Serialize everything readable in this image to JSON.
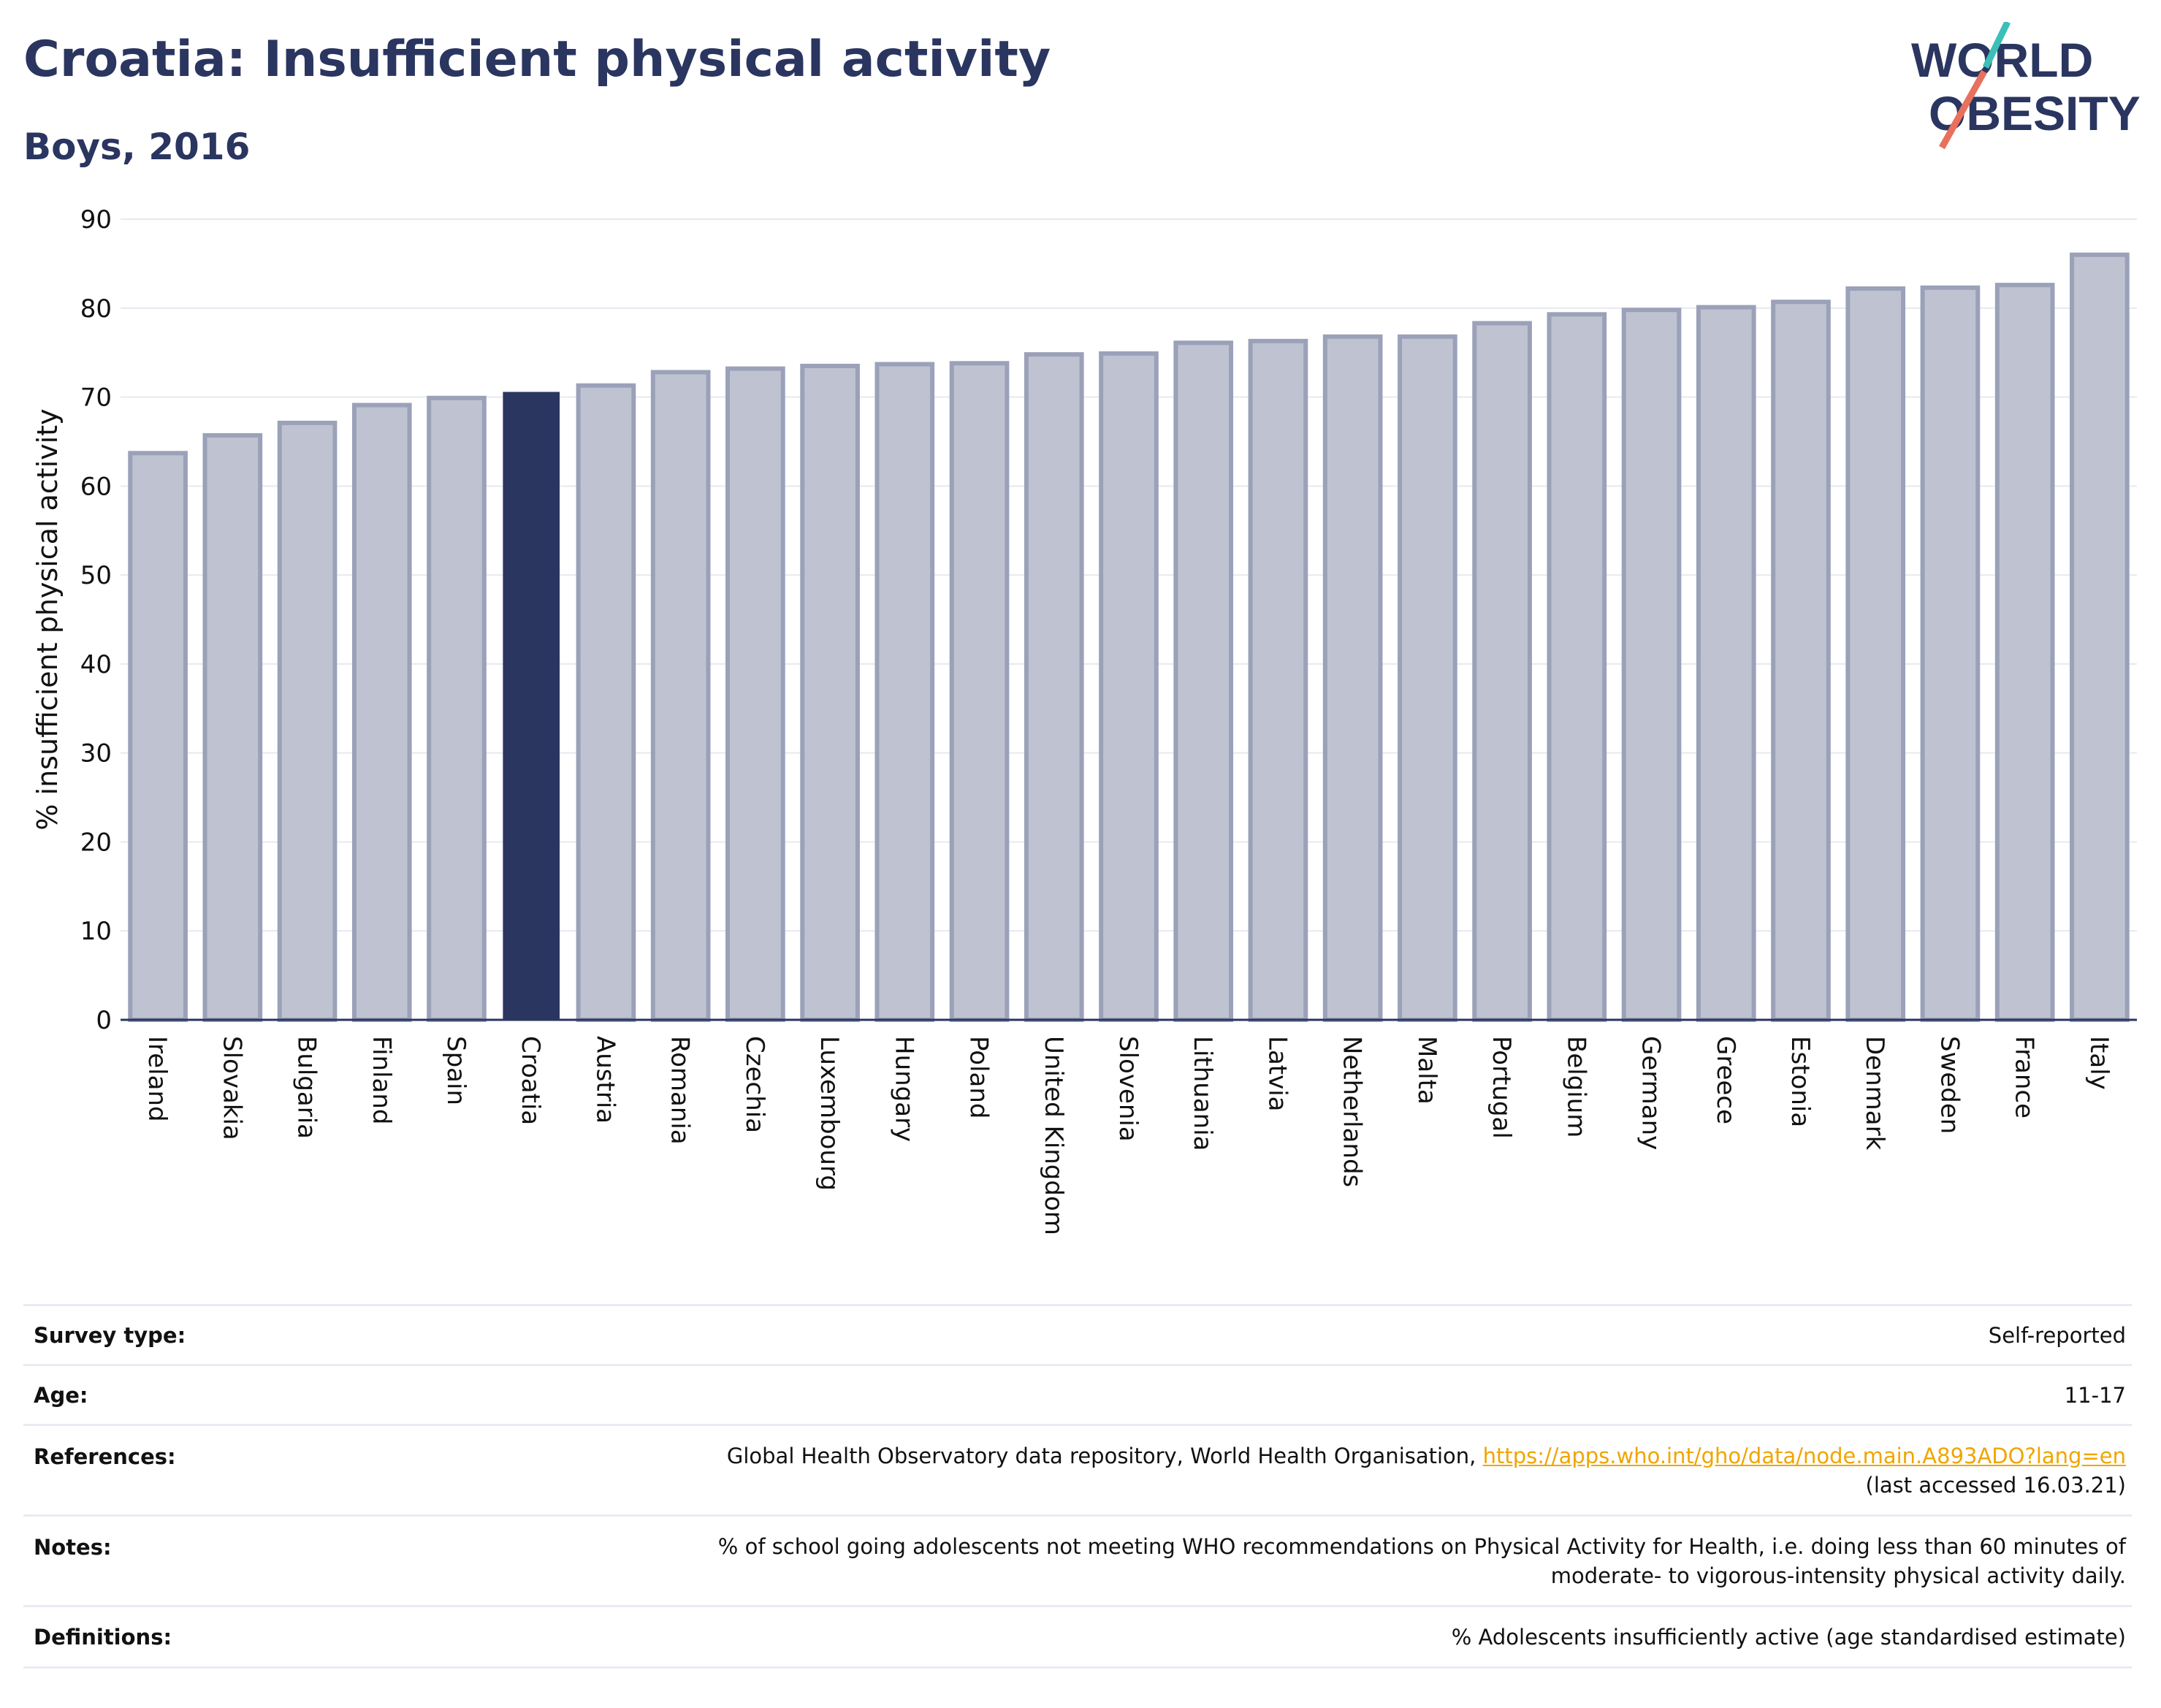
{
  "header": {
    "title": "Croatia: Insufficient physical activity",
    "subtitle": "Boys, 2016"
  },
  "logo": {
    "line1": "WORLD",
    "line2": "OBESITY",
    "accent_teal": "#3bbfb8",
    "accent_coral": "#e8705c",
    "text_color": "#2a3560"
  },
  "colors": {
    "highlight_bar": "#2a3560",
    "other_bar_fill": "#bfc3d1",
    "other_bar_border": "#9aa1b8",
    "gridline": "#e6e9f0"
  },
  "chart_data": {
    "type": "bar",
    "ylabel": "% insufficient physical activity",
    "xlabel": "",
    "ylim": [
      0,
      90
    ],
    "yticks": [
      0,
      10,
      20,
      30,
      40,
      50,
      60,
      70,
      80,
      90
    ],
    "grid": true,
    "highlight": "Croatia",
    "categories": [
      "Ireland",
      "Slovakia",
      "Bulgaria",
      "Finland",
      "Spain",
      "Croatia",
      "Austria",
      "Romania",
      "Czechia",
      "Luxembourg",
      "Hungary",
      "Poland",
      "United Kingdom",
      "Slovenia",
      "Lithuania",
      "Latvia",
      "Netherlands",
      "Malta",
      "Portugal",
      "Belgium",
      "Germany",
      "Greece",
      "Estonia",
      "Denmark",
      "Sweden",
      "France",
      "Italy"
    ],
    "values": [
      63.7,
      65.7,
      67.1,
      69.1,
      69.9,
      70.5,
      71.3,
      72.8,
      73.2,
      73.5,
      73.7,
      73.8,
      74.8,
      74.9,
      76.1,
      76.3,
      76.8,
      76.8,
      78.3,
      79.3,
      79.8,
      80.1,
      80.7,
      82.2,
      82.3,
      82.6,
      86.0
    ]
  },
  "meta": {
    "survey_type_label": "Survey type:",
    "survey_type_value": "Self-reported",
    "age_label": "Age:",
    "age_value": "11-17",
    "references_label": "References:",
    "references_text": "Global Health Observatory data repository, World Health Organisation, ",
    "references_link": "https://apps.who.int/gho/data/node.main.A893ADO?lang=en",
    "references_accessed": "(last accessed 16.03.21)",
    "notes_label": "Notes:",
    "notes_line1": "% of school going adolescents not meeting WHO recommendations on Physical Activity for Health, i.e. doing less than 60 minutes of",
    "notes_line2": "moderate- to vigorous-intensity physical activity daily.",
    "definitions_label": "Definitions:",
    "definitions_value": "% Adolescents insufficiently active (age standardised estimate)"
  }
}
